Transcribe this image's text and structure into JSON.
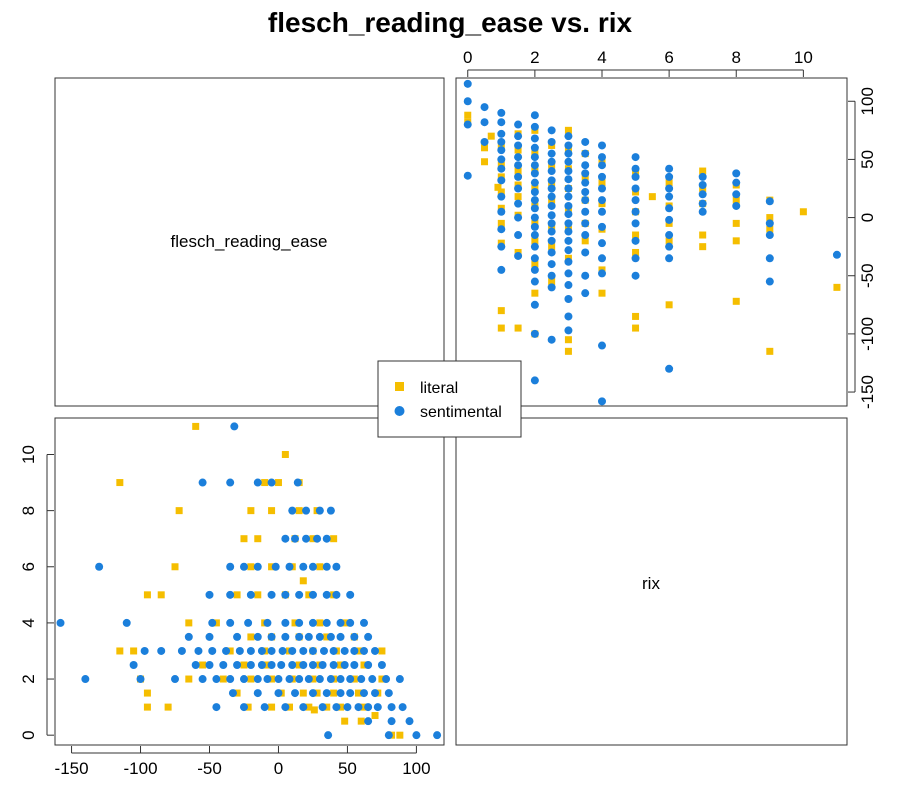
{
  "chart_data": {
    "type": "scatter",
    "title": "flesch_reading_ease vs. rix",
    "variables": [
      "flesch_reading_ease",
      "rix"
    ],
    "axes": {
      "flesch_reading_ease": {
        "range": [
          -162,
          120
        ],
        "ticks": [
          -150,
          -100,
          -50,
          0,
          50,
          100
        ]
      },
      "rix": {
        "range": [
          -0.35,
          11.3
        ],
        "ticks": [
          0,
          2,
          4,
          6,
          8,
          10
        ]
      }
    },
    "legend": {
      "placement": "center",
      "entries": [
        "literal",
        "sentimental"
      ]
    },
    "grid": false,
    "series": [
      {
        "name": "literal",
        "marker": "square",
        "color": "#F5BE00",
        "points": [
          [
            0.0,
            88
          ],
          [
            0.0,
            82
          ],
          [
            0.5,
            60
          ],
          [
            0.5,
            48
          ],
          [
            0.7,
            70
          ],
          [
            0.9,
            26
          ],
          [
            1.0,
            62
          ],
          [
            1.0,
            45
          ],
          [
            1.0,
            35
          ],
          [
            1.0,
            22
          ],
          [
            1.0,
            8
          ],
          [
            1.0,
            -5
          ],
          [
            1.0,
            -22
          ],
          [
            1.0,
            -80
          ],
          [
            1.0,
            -95
          ],
          [
            1.5,
            72
          ],
          [
            1.5,
            58
          ],
          [
            1.5,
            40
          ],
          [
            1.5,
            28
          ],
          [
            1.5,
            18
          ],
          [
            1.5,
            2
          ],
          [
            1.5,
            -30
          ],
          [
            1.5,
            -95
          ],
          [
            2.0,
            75
          ],
          [
            2.0,
            55
          ],
          [
            2.0,
            40
          ],
          [
            2.0,
            25
          ],
          [
            2.0,
            10
          ],
          [
            2.0,
            -5
          ],
          [
            2.0,
            -20
          ],
          [
            2.0,
            -40
          ],
          [
            2.0,
            -65
          ],
          [
            2.0,
            -100
          ],
          [
            2.5,
            62
          ],
          [
            2.5,
            45
          ],
          [
            2.5,
            30
          ],
          [
            2.5,
            15
          ],
          [
            2.5,
            -8
          ],
          [
            2.5,
            -25
          ],
          [
            2.5,
            -55
          ],
          [
            3.0,
            75
          ],
          [
            3.0,
            58
          ],
          [
            3.0,
            42
          ],
          [
            3.0,
            25
          ],
          [
            3.0,
            8
          ],
          [
            3.0,
            -10
          ],
          [
            3.0,
            -35
          ],
          [
            3.0,
            -105
          ],
          [
            3.0,
            -115
          ],
          [
            3.5,
            55
          ],
          [
            3.5,
            35
          ],
          [
            3.5,
            15
          ],
          [
            3.5,
            -5
          ],
          [
            3.5,
            -20
          ],
          [
            4.0,
            48
          ],
          [
            4.0,
            30
          ],
          [
            4.0,
            12
          ],
          [
            4.0,
            -10
          ],
          [
            4.0,
            -45
          ],
          [
            4.0,
            -65
          ],
          [
            5.0,
            40
          ],
          [
            5.0,
            22
          ],
          [
            5.0,
            5
          ],
          [
            5.0,
            -15
          ],
          [
            5.0,
            -30
          ],
          [
            5.0,
            -85
          ],
          [
            5.0,
            -95
          ],
          [
            5.5,
            18
          ],
          [
            6.0,
            30
          ],
          [
            6.0,
            10
          ],
          [
            6.0,
            -5
          ],
          [
            6.0,
            -20
          ],
          [
            6.0,
            -75
          ],
          [
            7.0,
            40
          ],
          [
            7.0,
            25
          ],
          [
            7.0,
            12
          ],
          [
            7.0,
            -15
          ],
          [
            7.0,
            -25
          ],
          [
            8.0,
            28
          ],
          [
            8.0,
            15
          ],
          [
            8.0,
            -5
          ],
          [
            8.0,
            -20
          ],
          [
            8.0,
            -72
          ],
          [
            9.0,
            15
          ],
          [
            9.0,
            0
          ],
          [
            9.0,
            -10
          ],
          [
            9.0,
            -115
          ],
          [
            10.0,
            5
          ],
          [
            11.0,
            -60
          ]
        ]
      },
      {
        "name": "sentimental",
        "marker": "circle",
        "color": "#1B7FDB",
        "points": [
          [
            0.0,
            115
          ],
          [
            0.0,
            100
          ],
          [
            0.0,
            80
          ],
          [
            0.0,
            36
          ],
          [
            0.5,
            95
          ],
          [
            0.5,
            82
          ],
          [
            0.5,
            65
          ],
          [
            1.0,
            90
          ],
          [
            1.0,
            82
          ],
          [
            1.0,
            72
          ],
          [
            1.0,
            65
          ],
          [
            1.0,
            58
          ],
          [
            1.0,
            50
          ],
          [
            1.0,
            42
          ],
          [
            1.0,
            32
          ],
          [
            1.0,
            18
          ],
          [
            1.0,
            5
          ],
          [
            1.0,
            -10
          ],
          [
            1.0,
            -25
          ],
          [
            1.0,
            -45
          ],
          [
            1.5,
            80
          ],
          [
            1.5,
            70
          ],
          [
            1.5,
            62
          ],
          [
            1.5,
            52
          ],
          [
            1.5,
            45
          ],
          [
            1.5,
            35
          ],
          [
            1.5,
            25
          ],
          [
            1.5,
            12
          ],
          [
            1.5,
            0
          ],
          [
            1.5,
            -15
          ],
          [
            1.5,
            -33
          ],
          [
            2.0,
            88
          ],
          [
            2.0,
            78
          ],
          [
            2.0,
            68
          ],
          [
            2.0,
            60
          ],
          [
            2.0,
            52
          ],
          [
            2.0,
            45
          ],
          [
            2.0,
            38
          ],
          [
            2.0,
            30
          ],
          [
            2.0,
            22
          ],
          [
            2.0,
            15
          ],
          [
            2.0,
            8
          ],
          [
            2.0,
            0
          ],
          [
            2.0,
            -8
          ],
          [
            2.0,
            -15
          ],
          [
            2.0,
            -25
          ],
          [
            2.0,
            -35
          ],
          [
            2.0,
            -45
          ],
          [
            2.0,
            -55
          ],
          [
            2.0,
            -75
          ],
          [
            2.0,
            -100
          ],
          [
            2.0,
            -140
          ],
          [
            2.5,
            75
          ],
          [
            2.5,
            65
          ],
          [
            2.5,
            55
          ],
          [
            2.5,
            48
          ],
          [
            2.5,
            40
          ],
          [
            2.5,
            32
          ],
          [
            2.5,
            25
          ],
          [
            2.5,
            18
          ],
          [
            2.5,
            10
          ],
          [
            2.5,
            2
          ],
          [
            2.5,
            -5
          ],
          [
            2.5,
            -12
          ],
          [
            2.5,
            -20
          ],
          [
            2.5,
            -30
          ],
          [
            2.5,
            -40
          ],
          [
            2.5,
            -50
          ],
          [
            2.5,
            -60
          ],
          [
            2.5,
            -105
          ],
          [
            3.0,
            70
          ],
          [
            3.0,
            62
          ],
          [
            3.0,
            55
          ],
          [
            3.0,
            48
          ],
          [
            3.0,
            40
          ],
          [
            3.0,
            33
          ],
          [
            3.0,
            25
          ],
          [
            3.0,
            18
          ],
          [
            3.0,
            10
          ],
          [
            3.0,
            3
          ],
          [
            3.0,
            -5
          ],
          [
            3.0,
            -12
          ],
          [
            3.0,
            -20
          ],
          [
            3.0,
            -28
          ],
          [
            3.0,
            -38
          ],
          [
            3.0,
            -48
          ],
          [
            3.0,
            -58
          ],
          [
            3.0,
            -70
          ],
          [
            3.0,
            -85
          ],
          [
            3.0,
            -97
          ],
          [
            3.5,
            65
          ],
          [
            3.5,
            55
          ],
          [
            3.5,
            45
          ],
          [
            3.5,
            38
          ],
          [
            3.5,
            30
          ],
          [
            3.5,
            22
          ],
          [
            3.5,
            15
          ],
          [
            3.5,
            5
          ],
          [
            3.5,
            -5
          ],
          [
            3.5,
            -15
          ],
          [
            3.5,
            -30
          ],
          [
            3.5,
            -50
          ],
          [
            3.5,
            -65
          ],
          [
            4.0,
            62
          ],
          [
            4.0,
            52
          ],
          [
            4.0,
            45
          ],
          [
            4.0,
            35
          ],
          [
            4.0,
            25
          ],
          [
            4.0,
            15
          ],
          [
            4.0,
            5
          ],
          [
            4.0,
            -8
          ],
          [
            4.0,
            -22
          ],
          [
            4.0,
            -35
          ],
          [
            4.0,
            -48
          ],
          [
            4.0,
            -110
          ],
          [
            4.0,
            -158
          ],
          [
            5.0,
            52
          ],
          [
            5.0,
            42
          ],
          [
            5.0,
            35
          ],
          [
            5.0,
            25
          ],
          [
            5.0,
            15
          ],
          [
            5.0,
            5
          ],
          [
            5.0,
            -5
          ],
          [
            5.0,
            -20
          ],
          [
            5.0,
            -35
          ],
          [
            5.0,
            -50
          ],
          [
            6.0,
            42
          ],
          [
            6.0,
            35
          ],
          [
            6.0,
            25
          ],
          [
            6.0,
            18
          ],
          [
            6.0,
            8
          ],
          [
            6.0,
            -2
          ],
          [
            6.0,
            -15
          ],
          [
            6.0,
            -25
          ],
          [
            6.0,
            -35
          ],
          [
            6.0,
            -130
          ],
          [
            7.0,
            35
          ],
          [
            7.0,
            28
          ],
          [
            7.0,
            20
          ],
          [
            7.0,
            12
          ],
          [
            7.0,
            5
          ],
          [
            8.0,
            38
          ],
          [
            8.0,
            30
          ],
          [
            8.0,
            20
          ],
          [
            8.0,
            10
          ],
          [
            9.0,
            14
          ],
          [
            9.0,
            -5
          ],
          [
            9.0,
            -15
          ],
          [
            9.0,
            -35
          ],
          [
            9.0,
            -55
          ],
          [
            11.0,
            -32
          ]
        ]
      }
    ]
  }
}
